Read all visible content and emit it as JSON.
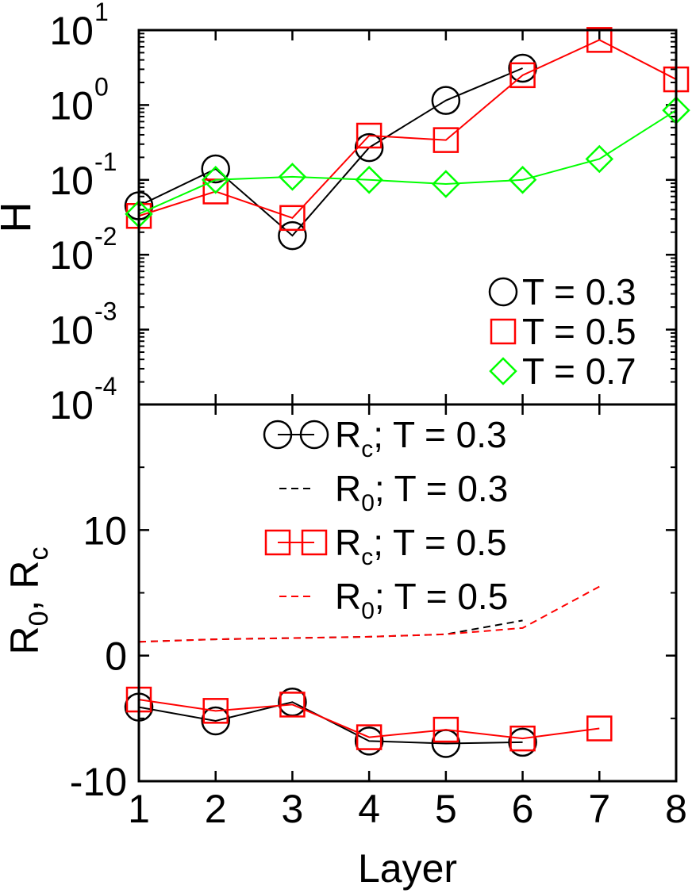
{
  "chart_data": [
    {
      "panel": "top",
      "type": "line",
      "ylabel": "H",
      "yscale": "log",
      "ylim": [
        0.0001,
        10
      ],
      "y_ticks": [
        {
          "value": 10,
          "base": "10",
          "exp": "1"
        },
        {
          "value": 1,
          "base": "10",
          "exp": "0"
        },
        {
          "value": 0.1,
          "base": "10",
          "exp": "-1"
        },
        {
          "value": 0.01,
          "base": "10",
          "exp": "-2"
        },
        {
          "value": 0.001,
          "base": "10",
          "exp": "-3"
        },
        {
          "value": 0.0001,
          "base": "10",
          "exp": "-4"
        }
      ],
      "xlim": [
        1,
        8
      ],
      "legend": "bottom-right",
      "series": [
        {
          "name": "T = 0.3",
          "color": "#000000",
          "marker": "circle",
          "line": "solid",
          "x": [
            1,
            2,
            3,
            4,
            5,
            6
          ],
          "y": [
            0.045,
            0.14,
            0.018,
            0.27,
            1.15,
            3.1
          ]
        },
        {
          "name": "T = 0.5",
          "color": "#ff0000",
          "marker": "square",
          "line": "solid",
          "x": [
            1,
            2,
            3,
            4,
            5,
            6,
            7,
            8
          ],
          "y": [
            0.033,
            0.07,
            0.031,
            0.39,
            0.34,
            2.5,
            7.4,
            2.2
          ]
        },
        {
          "name": "T = 0.7",
          "color": "#00ff00",
          "marker": "diamond",
          "line": "solid",
          "x": [
            1,
            2,
            3,
            4,
            5,
            6,
            7,
            8
          ],
          "y": [
            0.035,
            0.1,
            0.11,
            0.1,
            0.088,
            0.1,
            0.19,
            0.85
          ]
        }
      ]
    },
    {
      "panel": "bottom",
      "type": "line",
      "xlabel": "Layer",
      "ylabel": {
        "r0": "R",
        "r0_sub": "0",
        "sep": ", ",
        "rc": "R",
        "rc_sub": "c"
      },
      "ylim": [
        -10,
        20
      ],
      "xlim": [
        1,
        8
      ],
      "x_ticks": [
        "1",
        "2",
        "3",
        "4",
        "5",
        "6",
        "7",
        "8"
      ],
      "y_ticks": [
        {
          "value": -10,
          "label": "-10"
        },
        {
          "value": 0,
          "label": "0"
        },
        {
          "value": 10,
          "label": "10"
        }
      ],
      "legend": "top-center",
      "series": [
        {
          "name": {
            "main": "R",
            "sub": "c",
            "rest": "; T = 0.3"
          },
          "color": "#000000",
          "marker": "circle",
          "line": "solid",
          "x": [
            1,
            2,
            3,
            4,
            5,
            6
          ],
          "y": [
            -4.1,
            -5.2,
            -3.7,
            -6.8,
            -7.0,
            -6.9
          ]
        },
        {
          "name": {
            "main": "R",
            "sub": "0",
            "rest": "; T = 0.3"
          },
          "color": "#000000",
          "marker": "none",
          "line": "dashed",
          "x": [
            1,
            2,
            3,
            4,
            5,
            6
          ],
          "y": [
            1.1,
            1.3,
            1.4,
            1.5,
            1.7,
            2.8
          ]
        },
        {
          "name": {
            "main": "R",
            "sub": "c",
            "rest": "; T = 0.5"
          },
          "color": "#ff0000",
          "marker": "square",
          "line": "solid",
          "x": [
            1,
            2,
            3,
            4,
            5,
            6,
            7
          ],
          "y": [
            -3.5,
            -4.4,
            -3.9,
            -6.5,
            -5.9,
            -6.6,
            -5.8
          ]
        },
        {
          "name": {
            "main": "R",
            "sub": "0",
            "rest": "; T = 0.5"
          },
          "color": "#ff0000",
          "marker": "none",
          "line": "dashed",
          "x": [
            1,
            2,
            3,
            4,
            5,
            6,
            7
          ],
          "y": [
            1.1,
            1.3,
            1.4,
            1.5,
            1.7,
            2.2,
            5.5
          ]
        }
      ]
    }
  ]
}
